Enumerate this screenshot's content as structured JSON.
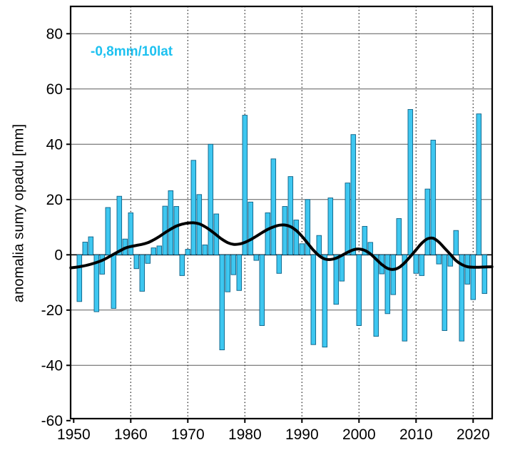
{
  "chart_data": {
    "type": "bar",
    "title": "",
    "xlabel": "",
    "ylabel": "anomalia sumy opadu [mm]",
    "annotation": {
      "text": "-0,8mm/10lat",
      "color": "#1ec1f0"
    },
    "legend": "none",
    "grid": {
      "horizontal": "solid",
      "vertical": "dotted-decades"
    },
    "ylim": [
      -60,
      90
    ],
    "xlim": [
      1949.5,
      2023.3
    ],
    "yticks": [
      80,
      60,
      40,
      20,
      0,
      -20,
      -40,
      -60
    ],
    "xticks": [
      1950,
      1960,
      1970,
      1980,
      1990,
      2000,
      2010,
      2020
    ],
    "bar_color": "#3ec7f0",
    "bar_edge_color": "#0f6186",
    "trend_color": "#000000",
    "years": [
      1951,
      1952,
      1953,
      1954,
      1955,
      1956,
      1957,
      1958,
      1959,
      1960,
      1961,
      1962,
      1963,
      1964,
      1965,
      1966,
      1967,
      1968,
      1969,
      1970,
      1971,
      1972,
      1973,
      1974,
      1975,
      1976,
      1977,
      1978,
      1979,
      1980,
      1981,
      1982,
      1983,
      1984,
      1985,
      1986,
      1987,
      1988,
      1989,
      1990,
      1991,
      1992,
      1993,
      1994,
      1995,
      1996,
      1997,
      1998,
      1999,
      2000,
      2001,
      2002,
      2003,
      2004,
      2005,
      2006,
      2007,
      2008,
      2009,
      2010,
      2011,
      2012,
      2013,
      2014,
      2015,
      2016,
      2017,
      2018,
      2019,
      2020,
      2021,
      2022
    ],
    "values": [
      -16.9,
      4.6,
      6.5,
      -20.6,
      -7.0,
      17.1,
      -19.4,
      21.2,
      5.7,
      15.2,
      -5.0,
      -13.2,
      -3.1,
      2.5,
      3.2,
      17.6,
      23.2,
      17.5,
      -7.5,
      2.0,
      34.2,
      21.8,
      3.6,
      40.0,
      14.8,
      -34.4,
      -13.4,
      -7.2,
      -12.9,
      50.5,
      19.1,
      -2.0,
      -25.6,
      15.2,
      34.7,
      -6.7,
      17.5,
      28.3,
      12.6,
      4.0,
      20.0,
      -32.5,
      7.0,
      -33.4,
      20.6,
      -17.9,
      -9.5,
      26.0,
      43.5,
      -25.6,
      10.3,
      4.5,
      -29.5,
      -6.9,
      -21.3,
      -14.4,
      13.1,
      -31.2,
      52.6,
      -6.7,
      -7.5,
      23.8,
      41.5,
      -3.3,
      -27.4,
      -4.1,
      8.8,
      -31.2,
      -10.6,
      -16.2,
      51.0,
      -14.0
    ],
    "trend": {
      "name": "smoothed-trend-line",
      "x": [
        1949.5,
        1951,
        1953,
        1955,
        1957,
        1959,
        1960,
        1961,
        1962,
        1963,
        1964,
        1965,
        1966,
        1967,
        1968,
        1969,
        1970,
        1971,
        1972,
        1973,
        1974,
        1975,
        1976,
        1977,
        1978,
        1979,
        1980,
        1981,
        1982,
        1983,
        1984,
        1985,
        1986,
        1987,
        1988,
        1989,
        1990,
        1991,
        1992,
        1993,
        1994,
        1995,
        1996,
        1997,
        1998,
        1999,
        2000,
        2001,
        2002,
        2003,
        2004,
        2005,
        2006,
        2007,
        2008,
        2009,
        2010,
        2011,
        2012,
        2013,
        2014,
        2015,
        2016,
        2017,
        2018,
        2019,
        2020,
        2021,
        2022,
        2023.3
      ],
      "y": [
        -4.7,
        -4.3,
        -3.4,
        -2.0,
        0.2,
        2.4,
        3.0,
        3.4,
        3.8,
        4.4,
        5.4,
        6.6,
        8.0,
        9.3,
        10.4,
        11.1,
        11.5,
        11.6,
        11.2,
        10.2,
        8.8,
        7.2,
        5.6,
        4.4,
        3.8,
        3.9,
        4.5,
        5.5,
        6.7,
        8.0,
        9.2,
        10.1,
        10.7,
        10.8,
        10.2,
        8.8,
        6.7,
        4.2,
        1.7,
        -0.3,
        -1.5,
        -1.7,
        -1.2,
        -0.2,
        0.9,
        1.8,
        2.1,
        1.6,
        0.3,
        -1.6,
        -3.5,
        -4.9,
        -5.3,
        -4.6,
        -2.9,
        -0.6,
        1.8,
        4.2,
        5.8,
        6.0,
        4.6,
        2.4,
        0.2,
        -2.1,
        -3.5,
        -4.3,
        -4.5,
        -4.5,
        -4.4,
        -4.3
      ]
    }
  }
}
